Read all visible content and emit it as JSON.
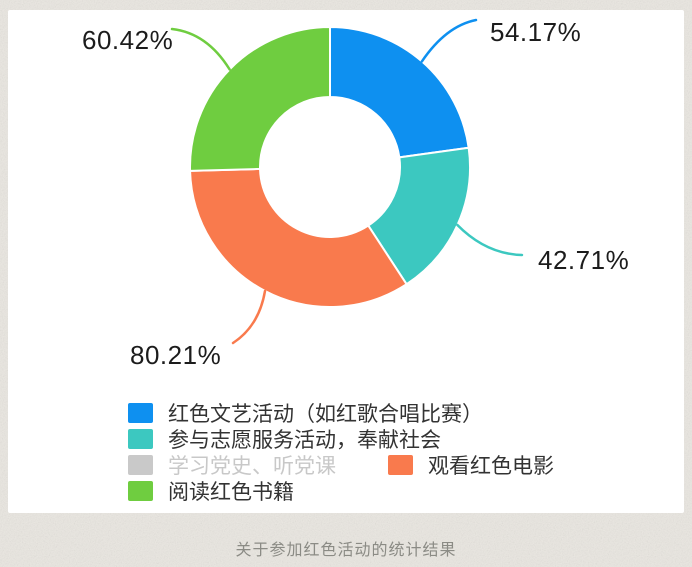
{
  "chart_data": {
    "type": "pie",
    "subtype": "donut",
    "title": "关于参加红色活动的统计结果",
    "legend_position": "bottom-left",
    "start_angle_deg": 0,
    "direction": "clockwise",
    "series": [
      {
        "name": "红色文艺活动（如红歌合唱比赛）",
        "value": 54.17,
        "label": "54.17%",
        "color": "#0e90f0",
        "selected": true
      },
      {
        "name": "参与志愿服务活动，奉献社会",
        "value": 42.71,
        "label": "42.71%",
        "color": "#3cc8c0",
        "selected": true
      },
      {
        "name": "学习党史、听党课",
        "value": null,
        "label": "",
        "color": "#c9c9c9",
        "selected": false
      },
      {
        "name": "观看红色电影",
        "value": 80.21,
        "label": "80.21%",
        "color": "#f97a4d",
        "selected": true
      },
      {
        "name": "阅读红色书籍",
        "value": 60.42,
        "label": "60.42%",
        "color": "#6fcd40",
        "selected": true
      }
    ],
    "colors": {
      "percent_label_text": "#1c1c1c",
      "legend_text": "#333333",
      "disabled_legend_text": "#c8c8c8",
      "caption_text": "#8b8b85",
      "panel_background": "#ffffff",
      "page_background": "#eae7e1",
      "slice_gap_stroke": "#ffffff"
    }
  }
}
